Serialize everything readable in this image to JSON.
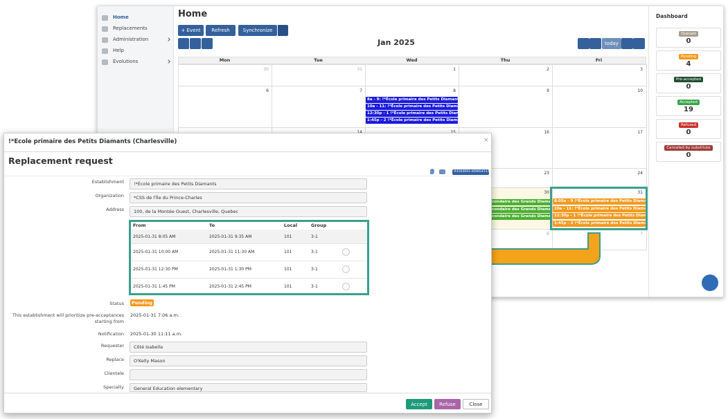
{
  "sidebar": [
    "Home",
    "Replacements",
    "Administration",
    "Help",
    "Evolutions"
  ],
  "page_title": "Home",
  "toolbar": {
    "event": "+ Event",
    "refresh": "Refresh",
    "synchronize": "Synchronize"
  },
  "calendar": {
    "title": "Jan 2025",
    "today": "today",
    "weekdays": [
      "Mon",
      "Tue",
      "Wed",
      "Thu",
      "Fri"
    ],
    "weeks": [
      [
        "30",
        "31",
        "1",
        "2",
        "3"
      ],
      [
        "6",
        "7",
        "8",
        "9",
        "10"
      ],
      [
        null,
        "14",
        "15",
        "16",
        "17"
      ],
      [
        null,
        null,
        null,
        "23",
        "24"
      ],
      [
        null,
        null,
        null,
        "30",
        "31"
      ],
      [
        null,
        null,
        null,
        "6",
        "7"
      ]
    ],
    "wed_8_events": [
      "8a - 9: !*École primaire des Petits Diamants - Re",
      "10a - 11: !*École primaire des Petits Diamants - R",
      "12:30p - 1 !*École primaire des Petits Diamants -",
      "1:45p - 2 !*École primaire des Petits Diamants - F"
    ],
    "thu_30_events": [
      "secondaire des Grands Diamant",
      "secondaire des Grands Diamant",
      "secondaire des Grands Diamant"
    ],
    "fri_31_events": [
      "8:05a - 9 !*École primaire des Petits Diamants -",
      "10a - 11: !*École primaire des Petits Diamants - R",
      "12:30p - 1 !*École primaire des Petits Diamants -",
      "1:45p - 2 !*École primaire des Petits Diamants - R"
    ]
  },
  "dashboard": {
    "title": "Dashboard",
    "items": [
      {
        "label": "Queued",
        "count": "0",
        "color": "#a89d8d"
      },
      {
        "label": "Pending",
        "count": "4",
        "color": "#f39a1f"
      },
      {
        "label": "Pre-accepted",
        "count": "0",
        "color": "#1f4d2e"
      },
      {
        "label": "Accepted",
        "count": "19",
        "color": "#3aa54a"
      },
      {
        "label": "Refused",
        "count": "0",
        "color": "#c9302c"
      },
      {
        "label": "Canceled by substitute",
        "count": "0",
        "color": "#a03a36"
      }
    ]
  },
  "modal": {
    "header": "!*École primaire des Petits Diamants (Charlesville)",
    "close_x": "×",
    "title": "Replacement request",
    "id_badge": "#4264691-469854533",
    "fields": [
      {
        "label": "Establishment",
        "value": "!*École primaire des Petits Diamants"
      },
      {
        "label": "Organization",
        "value": "*CSS de l'Île du Prince-Charles"
      },
      {
        "label": "Address",
        "value": "100, de la Montée Ouest, Charlesville, Quebec"
      }
    ],
    "table": {
      "headers": [
        "From",
        "To",
        "Local",
        "Group"
      ],
      "rows": [
        [
          "2025-01-31 8:05 AM",
          "2025-01-31 9:35 AM",
          "101",
          "3-1"
        ],
        [
          "2025-01-31 10:00 AM",
          "2025-01-31 11:30 AM",
          "101",
          "3-1"
        ],
        [
          "2025-01-31 12:30 PM",
          "2025-01-31 1:30 PM",
          "101",
          "3-1"
        ],
        [
          "2025-01-31 1:45 PM",
          "2025-01-31 2:45 PM",
          "101",
          "3-1"
        ]
      ]
    },
    "status_label": "Status",
    "status": "Pending",
    "priority_label": "This establishment will prioritize pre-acceptances starting from",
    "priority_value": "2025-01-31 7:06 a.m.",
    "notification_label": "Notification",
    "notification_value": "2025-01-30 11:11 a.m.",
    "lower_fields": [
      {
        "label": "Requester",
        "value": "Côté Isabella"
      },
      {
        "label": "Replace",
        "value": "O'Kelly Mason"
      },
      {
        "label": "Clientele"
      },
      {
        "label": "Specialty",
        "value": "General Education elementary"
      }
    ],
    "buttons": {
      "accept": "Accept",
      "refuse": "Refuse",
      "close": "Close"
    }
  }
}
